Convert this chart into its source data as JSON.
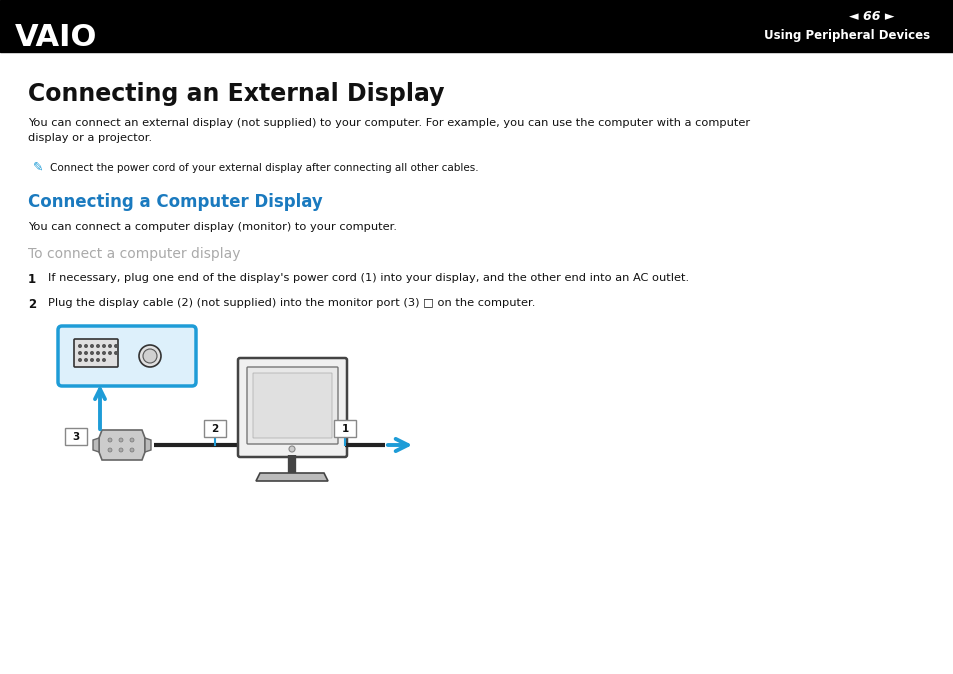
{
  "header_bg": "#000000",
  "header_text_color": "#ffffff",
  "header_page_num": "66",
  "header_section": "Using Peripheral Devices",
  "main_title": "Connecting an External Display",
  "body_text1_l1": "You can connect an external display (not supplied) to your computer. For example, you can use the computer with a computer",
  "body_text1_l2": "display or a projector.",
  "note_text": "Connect the power cord of your external display after connecting all other cables.",
  "subtitle1_color": "#1a7abf",
  "subtitle1": "Connecting a Computer Display",
  "body_text2": "You can connect a computer display (monitor) to your computer.",
  "subtitle2_color": "#aaaaaa",
  "subtitle2": "To connect a computer display",
  "step1_text": "If necessary, plug one end of the display's power cord (1) into your display, and the other end into an AC outlet.",
  "step2_text": "Plug the display cable (2) (not supplied) into the monitor port (3) □ on the computer.",
  "bg_color": "#ffffff",
  "text_color": "#111111",
  "blue_color": "#1e9cd7",
  "label_border": "#888888",
  "cable_color": "#222222",
  "monitor_outline": "#444444",
  "monitor_face": "#f0f0f0",
  "screen_color": "#e8e8e8",
  "connector_color": "#cccccc",
  "connector_outline": "#666666"
}
